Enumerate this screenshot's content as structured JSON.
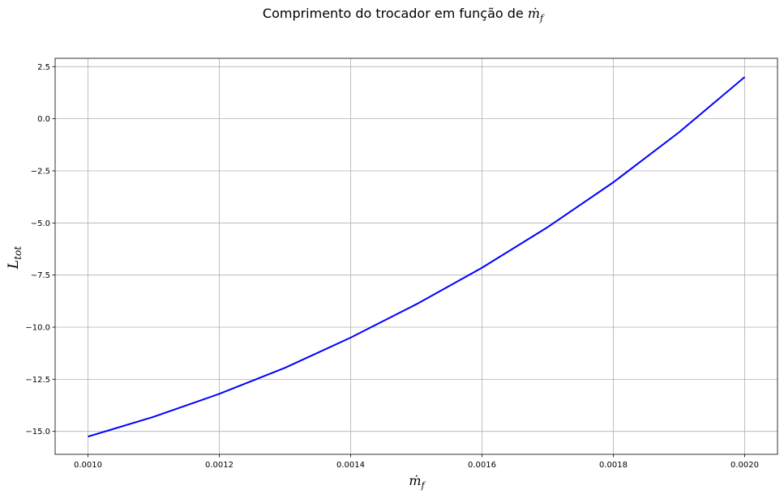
{
  "chart_data": {
    "type": "line",
    "title": "Comprimento do trocador em função de ",
    "title_symbol": "ṁ",
    "title_symbol_sub": "f",
    "xlabel_symbol": "ṁ",
    "xlabel_sub": "f",
    "ylabel_symbol": "L",
    "ylabel_sub": "tot",
    "xlim": [
      0.00095,
      0.00205
    ],
    "ylim": [
      -16.1,
      2.9
    ],
    "xticks": [
      0.001,
      0.0012,
      0.0014,
      0.0016,
      0.0018,
      0.002
    ],
    "xtick_labels": [
      "0.0010",
      "0.0012",
      "0.0014",
      "0.0016",
      "0.0018",
      "0.0020"
    ],
    "yticks": [
      2.5,
      0,
      -2.5,
      -5,
      -7.5,
      -10,
      -12.5,
      -15
    ],
    "ytick_labels": [
      "2.5",
      "0.0",
      "−2.5",
      "−5.0",
      "−7.5",
      "−10.0",
      "−12.5",
      "−15.0"
    ],
    "grid": true,
    "series": [
      {
        "color": "#0000ff",
        "x": [
          0.001,
          0.0011,
          0.0012,
          0.0013,
          0.0014,
          0.0015,
          0.0016,
          0.0017,
          0.0018,
          0.0019,
          0.002
        ],
        "y": [
          -15.25,
          -14.3,
          -13.2,
          -11.95,
          -10.5,
          -8.9,
          -7.15,
          -5.2,
          -3.05,
          -0.65,
          2.0
        ]
      }
    ]
  }
}
